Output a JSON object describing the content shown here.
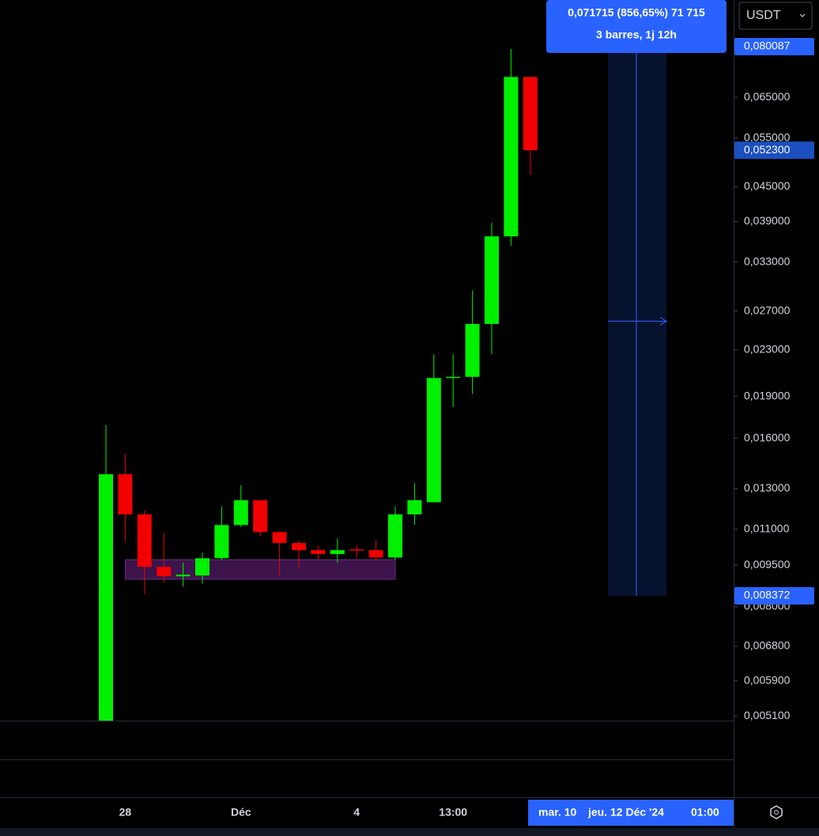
{
  "chart_data": {
    "type": "candlestick",
    "log_scale": true,
    "categories": [
      null,
      "28",
      null,
      null,
      null,
      null,
      null,
      "Déc",
      null,
      null,
      null,
      null,
      null,
      "4",
      null,
      null,
      null,
      null,
      "13:00",
      null,
      null,
      null,
      null
    ],
    "open": [
      0.005,
      0.0138,
      0.0117,
      0.00943,
      0.00907,
      0.0091,
      0.00977,
      0.0112,
      0.0124,
      0.01088,
      0.0104,
      0.0101,
      0.00994,
      0.01013,
      0.0101,
      0.0098,
      0.0117,
      0.0123,
      0.0205,
      0.0206,
      0.0256,
      0.0367,
      0.0707
    ],
    "high": [
      0.0169,
      0.015,
      0.0119,
      0.01085,
      0.0096,
      0.01,
      0.0121,
      0.0132,
      0.0124,
      0.0109,
      0.0105,
      0.0103,
      0.0106,
      0.0103,
      0.0105,
      0.0121,
      0.0133,
      0.0226,
      0.0226,
      0.0294,
      0.0388,
      0.0793,
      0.0707
    ],
    "low": [
      0.0049,
      0.01047,
      0.00842,
      0.00884,
      0.00869,
      0.0088,
      0.0097,
      0.0111,
      0.0107,
      0.0091,
      0.00939,
      0.0097,
      0.0096,
      0.0098,
      0.0097,
      0.0097,
      0.0112,
      0.0123,
      0.0182,
      0.0192,
      0.0226,
      0.0353,
      0.0473
    ],
    "close": [
      0.0138,
      0.0117,
      0.00943,
      0.00907,
      0.00913,
      0.00977,
      0.0112,
      0.0124,
      0.01088,
      0.0104,
      0.0101,
      0.00994,
      0.0101,
      0.0101,
      0.0098,
      0.0117,
      0.0124,
      0.0205,
      0.0206,
      0.0256,
      0.0367,
      0.0707,
      0.0523
    ],
    "up_color": "#00f000",
    "down_color": "#f20000",
    "ylim": [
      0.00501,
      0.097
    ],
    "yticks": [
      {
        "value": 0.065,
        "label": "0,065000"
      },
      {
        "value": 0.055,
        "label": "0,055000"
      },
      {
        "value": 0.045,
        "label": "0,045000"
      },
      {
        "value": 0.039,
        "label": "0,039000"
      },
      {
        "value": 0.033,
        "label": "0,033000"
      },
      {
        "value": 0.027,
        "label": "0,027000"
      },
      {
        "value": 0.023,
        "label": "0,023000"
      },
      {
        "value": 0.019,
        "label": "0,019000"
      },
      {
        "value": 0.016,
        "label": "0,016000"
      },
      {
        "value": 0.013,
        "label": "0,013000"
      },
      {
        "value": 0.011,
        "label": "0,011000"
      },
      {
        "value": 0.0095,
        "label": "0,009500"
      },
      {
        "value": 0.008,
        "label": "0,008000"
      },
      {
        "value": 0.0068,
        "label": "0,006800"
      },
      {
        "value": 0.0059,
        "label": "0,005900"
      },
      {
        "value": 0.0051,
        "label": "0,005100"
      }
    ],
    "zone": {
      "low": 0.00896,
      "high": 0.00971
    },
    "measure": {
      "to": {
        "value": 0.080087,
        "label": "0,080087"
      },
      "from": {
        "value": 0.008372,
        "label": "0,008372"
      }
    },
    "last_price": {
      "value": 0.0523,
      "label": "0,052300"
    }
  },
  "ui": {
    "currency": "USDT",
    "tooltip": [
      "0,071715 (856,65%) 71 715",
      "3 barres, 1j 12h"
    ],
    "time_cursor": [
      "mar. 10",
      "jeu. 12 Déc '24",
      "01:00"
    ]
  }
}
